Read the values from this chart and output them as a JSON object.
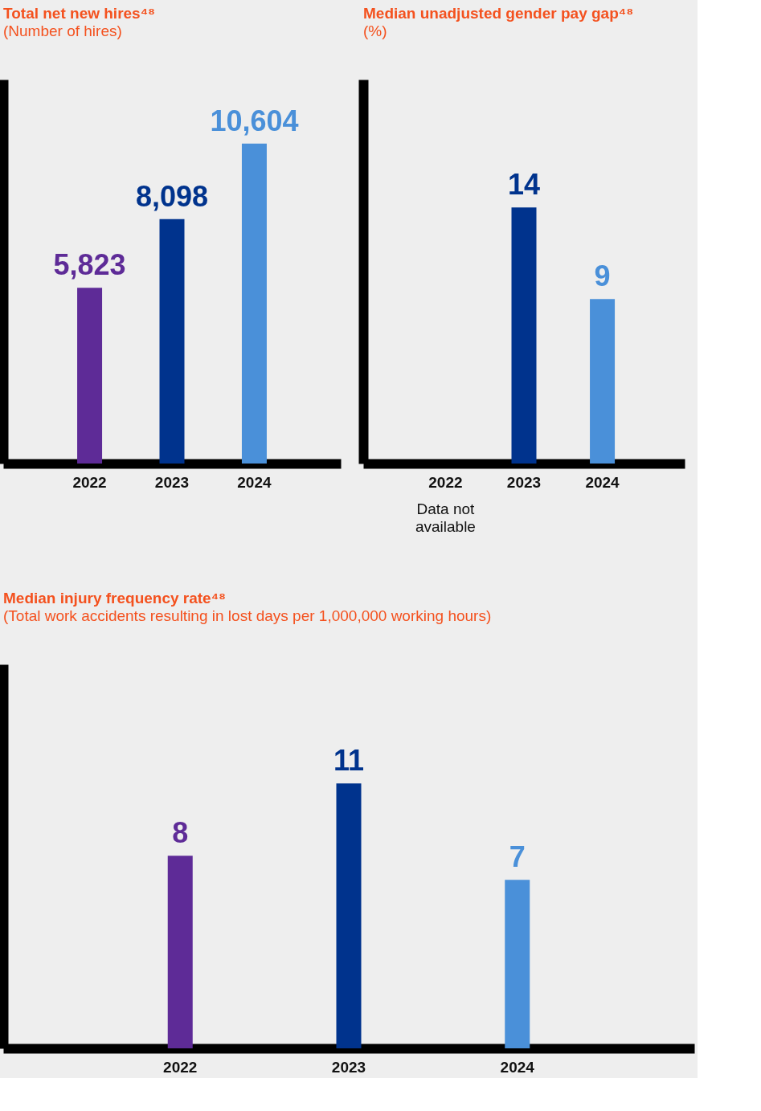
{
  "chart_data": [
    {
      "type": "bar",
      "title": "Total net new hires⁴⁸",
      "subtitle": "(Number of hires)",
      "categories": [
        "2022",
        "2023",
        "2024"
      ],
      "values": [
        5823,
        8098,
        10604
      ],
      "value_labels": [
        "5,823",
        "8,098",
        "10,604"
      ],
      "colors": [
        "#5e2b97",
        "#00338d",
        "#4a90d9"
      ],
      "tick_labels": "x",
      "grid": false
    },
    {
      "type": "bar",
      "title": "Median unadjusted gender pay gap⁴⁸",
      "subtitle": "(%)",
      "categories": [
        "2022",
        "2023",
        "2024"
      ],
      "values": [
        null,
        14,
        9
      ],
      "colors": [
        "#5e2b97",
        "#00338d",
        "#4a90d9"
      ],
      "data_labels": true,
      "tick_labels": "x",
      "grid": false,
      "annotations": [
        "Data not available"
      ]
    },
    {
      "type": "bar",
      "title": "Median injury frequency rate⁴⁸",
      "subtitle": "(Total work accidents resulting in lost days per 1,000,000 working hours)",
      "categories": [
        "2022",
        "2023",
        "2024"
      ],
      "values": [
        8,
        11,
        7
      ],
      "colors": [
        "#5e2b97",
        "#00338d",
        "#4a90d9"
      ],
      "data_labels": true,
      "tick_labels": "x",
      "grid": false
    }
  ]
}
